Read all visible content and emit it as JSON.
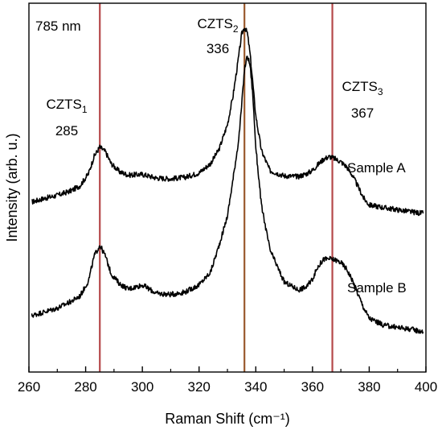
{
  "chart_data": {
    "type": "line",
    "xlabel": "Raman Shift (cm⁻¹)",
    "ylabel": "Intensity (arb. u.)",
    "xlim": [
      260,
      400
    ],
    "ylim": [
      0,
      1
    ],
    "xticks": [
      260,
      280,
      300,
      320,
      340,
      360,
      380,
      400
    ],
    "yticks_shown": false,
    "annotation_wavelength": "785 nm",
    "reference_lines": [
      {
        "x": 285,
        "label_base": "CZTS",
        "label_sub": "1",
        "value_label": "285",
        "color": "#b5484a"
      },
      {
        "x": 336,
        "label_base": "CZTS",
        "label_sub": "2",
        "value_label": "336",
        "color": "#9a5a2e"
      },
      {
        "x": 367,
        "label_base": "CZTS",
        "label_sub": "3",
        "value_label": "367",
        "color": "#b5484a"
      }
    ],
    "series": [
      {
        "name": "Sample A",
        "color": "#000000",
        "x": [
          261,
          265,
          270,
          275,
          278,
          281,
          283,
          285,
          287,
          289,
          292,
          295,
          300,
          305,
          310,
          315,
          320,
          324,
          327,
          330,
          332,
          334,
          335,
          336,
          337,
          338,
          339,
          340,
          342,
          345,
          350,
          355,
          358,
          360,
          362,
          364,
          366,
          368,
          370,
          372,
          374,
          376,
          378,
          380,
          385,
          390,
          395,
          399
        ],
        "y": [
          0.461,
          0.47,
          0.479,
          0.492,
          0.505,
          0.538,
          0.585,
          0.61,
          0.597,
          0.565,
          0.543,
          0.534,
          0.536,
          0.526,
          0.524,
          0.528,
          0.54,
          0.565,
          0.603,
          0.671,
          0.75,
          0.857,
          0.915,
          0.935,
          0.92,
          0.862,
          0.779,
          0.695,
          0.6,
          0.546,
          0.532,
          0.53,
          0.538,
          0.547,
          0.563,
          0.578,
          0.584,
          0.578,
          0.57,
          0.557,
          0.534,
          0.504,
          0.472,
          0.453,
          0.446,
          0.44,
          0.434,
          0.43
        ]
      },
      {
        "name": "Sample B",
        "color": "#000000",
        "x": [
          261,
          265,
          270,
          275,
          278,
          281,
          283,
          285,
          287,
          289,
          292,
          295,
          300,
          305,
          310,
          315,
          320,
          324,
          327,
          330,
          332,
          334,
          335,
          336,
          337,
          338,
          339,
          340,
          342,
          345,
          350,
          355,
          358,
          360,
          362,
          364,
          366,
          368,
          370,
          372,
          374,
          376,
          378,
          380,
          385,
          390,
          395,
          399
        ],
        "y": [
          0.153,
          0.162,
          0.173,
          0.192,
          0.206,
          0.247,
          0.314,
          0.344,
          0.314,
          0.266,
          0.239,
          0.225,
          0.236,
          0.213,
          0.21,
          0.217,
          0.236,
          0.27,
          0.342,
          0.423,
          0.524,
          0.632,
          0.72,
          0.82,
          0.857,
          0.832,
          0.745,
          0.61,
          0.451,
          0.331,
          0.244,
          0.223,
          0.231,
          0.253,
          0.287,
          0.306,
          0.307,
          0.304,
          0.297,
          0.28,
          0.25,
          0.212,
          0.175,
          0.146,
          0.127,
          0.121,
          0.116,
          0.109
        ]
      }
    ],
    "grid": false,
    "legend": "series labels placed beside curves"
  }
}
